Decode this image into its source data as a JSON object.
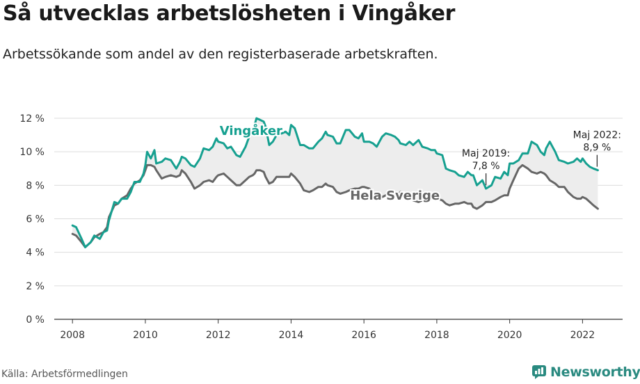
{
  "header": {
    "title": "Så utvecklas arbetslösheten i Vingåker",
    "subtitle": "Arbetssökande som andel av den registerbaserade arbetskraften."
  },
  "footer": {
    "source": "Källa: Arbetsförmedlingen",
    "brand": "Newsworthy"
  },
  "colors": {
    "local": "#16a090",
    "national": "#666666",
    "band": "#ededed",
    "grid": "#dcdcdc",
    "brand": "#2a8a80"
  },
  "chart_data": {
    "type": "line",
    "title": "Så utvecklas arbetslösheten i Vingåker",
    "subtitle": "Arbetssökande som andel av den registerbaserade arbetskraften.",
    "xlim": [
      2007.5,
      2023.1
    ],
    "ylim": [
      0,
      12
    ],
    "x_ticks": [
      {
        "value": 2008,
        "label": "2008"
      },
      {
        "value": 2010,
        "label": "2010"
      },
      {
        "value": 2012,
        "label": "2012"
      },
      {
        "value": 2014,
        "label": "2014"
      },
      {
        "value": 2016,
        "label": "2016"
      },
      {
        "value": 2018,
        "label": "2018"
      },
      {
        "value": 2020,
        "label": "2020"
      },
      {
        "value": 2022,
        "label": "2022"
      }
    ],
    "y_ticks": [
      {
        "value": 0,
        "label": "0 %"
      },
      {
        "value": 2,
        "label": "2 %"
      },
      {
        "value": 4,
        "label": "4 %"
      },
      {
        "value": 6,
        "label": "6 %"
      },
      {
        "value": 8,
        "label": "8 %"
      },
      {
        "value": 10,
        "label": "10 %"
      },
      {
        "value": 12,
        "label": "12 %"
      }
    ],
    "grid": true,
    "series": [
      {
        "name": "Vingåker",
        "color": "#16a090",
        "points": [
          [
            2008.0,
            5.6
          ],
          [
            2008.1,
            5.5
          ],
          [
            2008.25,
            4.8
          ],
          [
            2008.35,
            4.3
          ],
          [
            2008.5,
            4.6
          ],
          [
            2008.6,
            5.0
          ],
          [
            2008.75,
            4.8
          ],
          [
            2008.85,
            5.2
          ],
          [
            2008.95,
            5.3
          ],
          [
            2009.0,
            5.9
          ],
          [
            2009.15,
            7.0
          ],
          [
            2009.25,
            6.9
          ],
          [
            2009.35,
            7.2
          ],
          [
            2009.5,
            7.2
          ],
          [
            2009.6,
            7.6
          ],
          [
            2009.7,
            8.2
          ],
          [
            2009.85,
            8.2
          ],
          [
            2009.95,
            8.7
          ],
          [
            2010.0,
            9.2
          ],
          [
            2010.05,
            10.0
          ],
          [
            2010.15,
            9.6
          ],
          [
            2010.25,
            10.1
          ],
          [
            2010.3,
            9.3
          ],
          [
            2010.45,
            9.4
          ],
          [
            2010.55,
            9.6
          ],
          [
            2010.7,
            9.5
          ],
          [
            2010.85,
            9.0
          ],
          [
            2010.95,
            9.4
          ],
          [
            2011.0,
            9.7
          ],
          [
            2011.1,
            9.6
          ],
          [
            2011.25,
            9.2
          ],
          [
            2011.35,
            9.1
          ],
          [
            2011.5,
            9.6
          ],
          [
            2011.6,
            10.2
          ],
          [
            2011.75,
            10.1
          ],
          [
            2011.85,
            10.3
          ],
          [
            2011.95,
            10.8
          ],
          [
            2012.0,
            10.6
          ],
          [
            2012.15,
            10.5
          ],
          [
            2012.25,
            10.2
          ],
          [
            2012.35,
            10.3
          ],
          [
            2012.5,
            9.8
          ],
          [
            2012.6,
            9.7
          ],
          [
            2012.75,
            10.3
          ],
          [
            2012.85,
            10.9
          ],
          [
            2012.95,
            11.2
          ],
          [
            2013.0,
            11.6
          ],
          [
            2013.05,
            12.0
          ],
          [
            2013.15,
            11.9
          ],
          [
            2013.25,
            11.8
          ],
          [
            2013.3,
            11.5
          ],
          [
            2013.4,
            10.4
          ],
          [
            2013.5,
            10.6
          ],
          [
            2013.6,
            11.0
          ],
          [
            2013.75,
            11.1
          ],
          [
            2013.85,
            11.2
          ],
          [
            2013.95,
            11.0
          ],
          [
            2014.0,
            11.6
          ],
          [
            2014.1,
            11.4
          ],
          [
            2014.25,
            10.4
          ],
          [
            2014.35,
            10.4
          ],
          [
            2014.5,
            10.2
          ],
          [
            2014.6,
            10.2
          ],
          [
            2014.75,
            10.6
          ],
          [
            2014.85,
            10.8
          ],
          [
            2014.95,
            11.2
          ],
          [
            2015.0,
            11.0
          ],
          [
            2015.15,
            10.9
          ],
          [
            2015.25,
            10.5
          ],
          [
            2015.35,
            10.5
          ],
          [
            2015.5,
            11.3
          ],
          [
            2015.6,
            11.3
          ],
          [
            2015.75,
            10.9
          ],
          [
            2015.85,
            10.8
          ],
          [
            2015.95,
            11.1
          ],
          [
            2016.0,
            10.6
          ],
          [
            2016.15,
            10.6
          ],
          [
            2016.25,
            10.5
          ],
          [
            2016.35,
            10.3
          ],
          [
            2016.5,
            10.9
          ],
          [
            2016.6,
            11.1
          ],
          [
            2016.75,
            11.0
          ],
          [
            2016.85,
            10.9
          ],
          [
            2016.95,
            10.7
          ],
          [
            2017.0,
            10.5
          ],
          [
            2017.15,
            10.4
          ],
          [
            2017.25,
            10.6
          ],
          [
            2017.35,
            10.4
          ],
          [
            2017.5,
            10.7
          ],
          [
            2017.6,
            10.3
          ],
          [
            2017.75,
            10.2
          ],
          [
            2017.85,
            10.1
          ],
          [
            2017.95,
            10.1
          ],
          [
            2018.0,
            9.9
          ],
          [
            2018.15,
            9.8
          ],
          [
            2018.25,
            9.0
          ],
          [
            2018.35,
            8.9
          ],
          [
            2018.5,
            8.8
          ],
          [
            2018.6,
            8.6
          ],
          [
            2018.75,
            8.5
          ],
          [
            2018.85,
            8.8
          ],
          [
            2018.95,
            8.6
          ],
          [
            2019.0,
            8.6
          ],
          [
            2019.1,
            8.0
          ],
          [
            2019.25,
            8.3
          ],
          [
            2019.35,
            7.8
          ],
          [
            2019.5,
            8.0
          ],
          [
            2019.6,
            8.5
          ],
          [
            2019.75,
            8.4
          ],
          [
            2019.85,
            8.8
          ],
          [
            2019.95,
            8.6
          ],
          [
            2020.0,
            9.3
          ],
          [
            2020.1,
            9.3
          ],
          [
            2020.25,
            9.5
          ],
          [
            2020.35,
            9.9
          ],
          [
            2020.5,
            9.9
          ],
          [
            2020.6,
            10.6
          ],
          [
            2020.75,
            10.4
          ],
          [
            2020.85,
            10.0
          ],
          [
            2020.95,
            9.8
          ],
          [
            2021.0,
            10.2
          ],
          [
            2021.1,
            10.6
          ],
          [
            2021.25,
            10.0
          ],
          [
            2021.35,
            9.5
          ],
          [
            2021.5,
            9.4
          ],
          [
            2021.6,
            9.3
          ],
          [
            2021.75,
            9.4
          ],
          [
            2021.85,
            9.6
          ],
          [
            2021.95,
            9.4
          ],
          [
            2022.0,
            9.6
          ],
          [
            2022.1,
            9.3
          ],
          [
            2022.2,
            9.1
          ],
          [
            2022.3,
            9.0
          ],
          [
            2022.42,
            8.9
          ]
        ]
      },
      {
        "name": "Hela Sverige",
        "color": "#666666",
        "points": [
          [
            2008.0,
            5.1
          ],
          [
            2008.1,
            5.0
          ],
          [
            2008.25,
            4.6
          ],
          [
            2008.35,
            4.3
          ],
          [
            2008.5,
            4.6
          ],
          [
            2008.6,
            4.9
          ],
          [
            2008.75,
            5.1
          ],
          [
            2008.85,
            5.2
          ],
          [
            2008.95,
            5.5
          ],
          [
            2009.0,
            6.1
          ],
          [
            2009.15,
            6.8
          ],
          [
            2009.25,
            6.9
          ],
          [
            2009.35,
            7.2
          ],
          [
            2009.5,
            7.4
          ],
          [
            2009.6,
            7.8
          ],
          [
            2009.7,
            8.1
          ],
          [
            2009.85,
            8.3
          ],
          [
            2009.95,
            8.6
          ],
          [
            2010.0,
            8.9
          ],
          [
            2010.05,
            9.2
          ],
          [
            2010.15,
            9.2
          ],
          [
            2010.25,
            9.1
          ],
          [
            2010.3,
            8.9
          ],
          [
            2010.45,
            8.4
          ],
          [
            2010.55,
            8.5
          ],
          [
            2010.7,
            8.6
          ],
          [
            2010.85,
            8.5
          ],
          [
            2010.95,
            8.6
          ],
          [
            2011.0,
            8.9
          ],
          [
            2011.1,
            8.7
          ],
          [
            2011.25,
            8.2
          ],
          [
            2011.35,
            7.8
          ],
          [
            2011.5,
            8.0
          ],
          [
            2011.6,
            8.2
          ],
          [
            2011.75,
            8.3
          ],
          [
            2011.85,
            8.2
          ],
          [
            2011.95,
            8.5
          ],
          [
            2012.0,
            8.6
          ],
          [
            2012.15,
            8.7
          ],
          [
            2012.25,
            8.5
          ],
          [
            2012.35,
            8.3
          ],
          [
            2012.5,
            8.0
          ],
          [
            2012.6,
            8.0
          ],
          [
            2012.75,
            8.3
          ],
          [
            2012.85,
            8.5
          ],
          [
            2012.95,
            8.6
          ],
          [
            2013.0,
            8.7
          ],
          [
            2013.05,
            8.9
          ],
          [
            2013.15,
            8.9
          ],
          [
            2013.25,
            8.8
          ],
          [
            2013.3,
            8.5
          ],
          [
            2013.4,
            8.1
          ],
          [
            2013.5,
            8.2
          ],
          [
            2013.6,
            8.5
          ],
          [
            2013.75,
            8.5
          ],
          [
            2013.85,
            8.5
          ],
          [
            2013.95,
            8.5
          ],
          [
            2014.0,
            8.7
          ],
          [
            2014.1,
            8.5
          ],
          [
            2014.25,
            8.1
          ],
          [
            2014.35,
            7.7
          ],
          [
            2014.5,
            7.6
          ],
          [
            2014.6,
            7.7
          ],
          [
            2014.75,
            7.9
          ],
          [
            2014.85,
            7.9
          ],
          [
            2014.95,
            8.1
          ],
          [
            2015.0,
            8.0
          ],
          [
            2015.15,
            7.9
          ],
          [
            2015.25,
            7.6
          ],
          [
            2015.35,
            7.5
          ],
          [
            2015.5,
            7.6
          ],
          [
            2015.6,
            7.7
          ],
          [
            2015.75,
            7.8
          ],
          [
            2015.85,
            7.8
          ],
          [
            2015.95,
            7.9
          ],
          [
            2016.0,
            7.9
          ],
          [
            2016.15,
            7.8
          ],
          [
            2016.25,
            7.5
          ],
          [
            2016.35,
            7.3
          ],
          [
            2016.5,
            7.3
          ],
          [
            2016.6,
            7.4
          ],
          [
            2016.75,
            7.4
          ],
          [
            2016.85,
            7.4
          ],
          [
            2016.95,
            7.5
          ],
          [
            2017.0,
            7.6
          ],
          [
            2017.15,
            7.5
          ],
          [
            2017.25,
            7.3
          ],
          [
            2017.35,
            7.1
          ],
          [
            2017.5,
            7.0
          ],
          [
            2017.6,
            7.1
          ],
          [
            2017.75,
            7.1
          ],
          [
            2017.85,
            7.2
          ],
          [
            2017.95,
            7.3
          ],
          [
            2018.0,
            7.2
          ],
          [
            2018.15,
            7.1
          ],
          [
            2018.25,
            6.9
          ],
          [
            2018.35,
            6.8
          ],
          [
            2018.5,
            6.9
          ],
          [
            2018.6,
            6.9
          ],
          [
            2018.75,
            7.0
          ],
          [
            2018.85,
            6.9
          ],
          [
            2018.95,
            6.9
          ],
          [
            2019.0,
            6.7
          ],
          [
            2019.1,
            6.6
          ],
          [
            2019.25,
            6.8
          ],
          [
            2019.35,
            7.0
          ],
          [
            2019.5,
            7.0
          ],
          [
            2019.6,
            7.1
          ],
          [
            2019.75,
            7.3
          ],
          [
            2019.85,
            7.4
          ],
          [
            2019.95,
            7.4
          ],
          [
            2020.0,
            7.8
          ],
          [
            2020.1,
            8.3
          ],
          [
            2020.25,
            9.0
          ],
          [
            2020.35,
            9.2
          ],
          [
            2020.5,
            9.0
          ],
          [
            2020.6,
            8.8
          ],
          [
            2020.75,
            8.7
          ],
          [
            2020.85,
            8.8
          ],
          [
            2020.95,
            8.7
          ],
          [
            2021.0,
            8.6
          ],
          [
            2021.1,
            8.3
          ],
          [
            2021.25,
            8.1
          ],
          [
            2021.35,
            7.9
          ],
          [
            2021.5,
            7.9
          ],
          [
            2021.6,
            7.6
          ],
          [
            2021.75,
            7.3
          ],
          [
            2021.85,
            7.2
          ],
          [
            2021.95,
            7.2
          ],
          [
            2022.0,
            7.3
          ],
          [
            2022.1,
            7.2
          ],
          [
            2022.2,
            7.0
          ],
          [
            2022.3,
            6.8
          ],
          [
            2022.42,
            6.6
          ]
        ]
      }
    ],
    "series_labels": [
      {
        "text": "Vingåker",
        "series": 0,
        "x": 2012.9,
        "y": 11.0
      },
      {
        "text": "Hela Sverige",
        "series": 1,
        "x": 2016.85,
        "y": 7.15
      }
    ],
    "annotations": [
      {
        "line1": "Maj 2019:",
        "line2": "7,8 %",
        "x": 2019.35,
        "y": 7.8
      },
      {
        "line1": "Maj 2022:",
        "line2": "8,9 %",
        "x": 2022.4,
        "y": 8.9
      }
    ]
  }
}
